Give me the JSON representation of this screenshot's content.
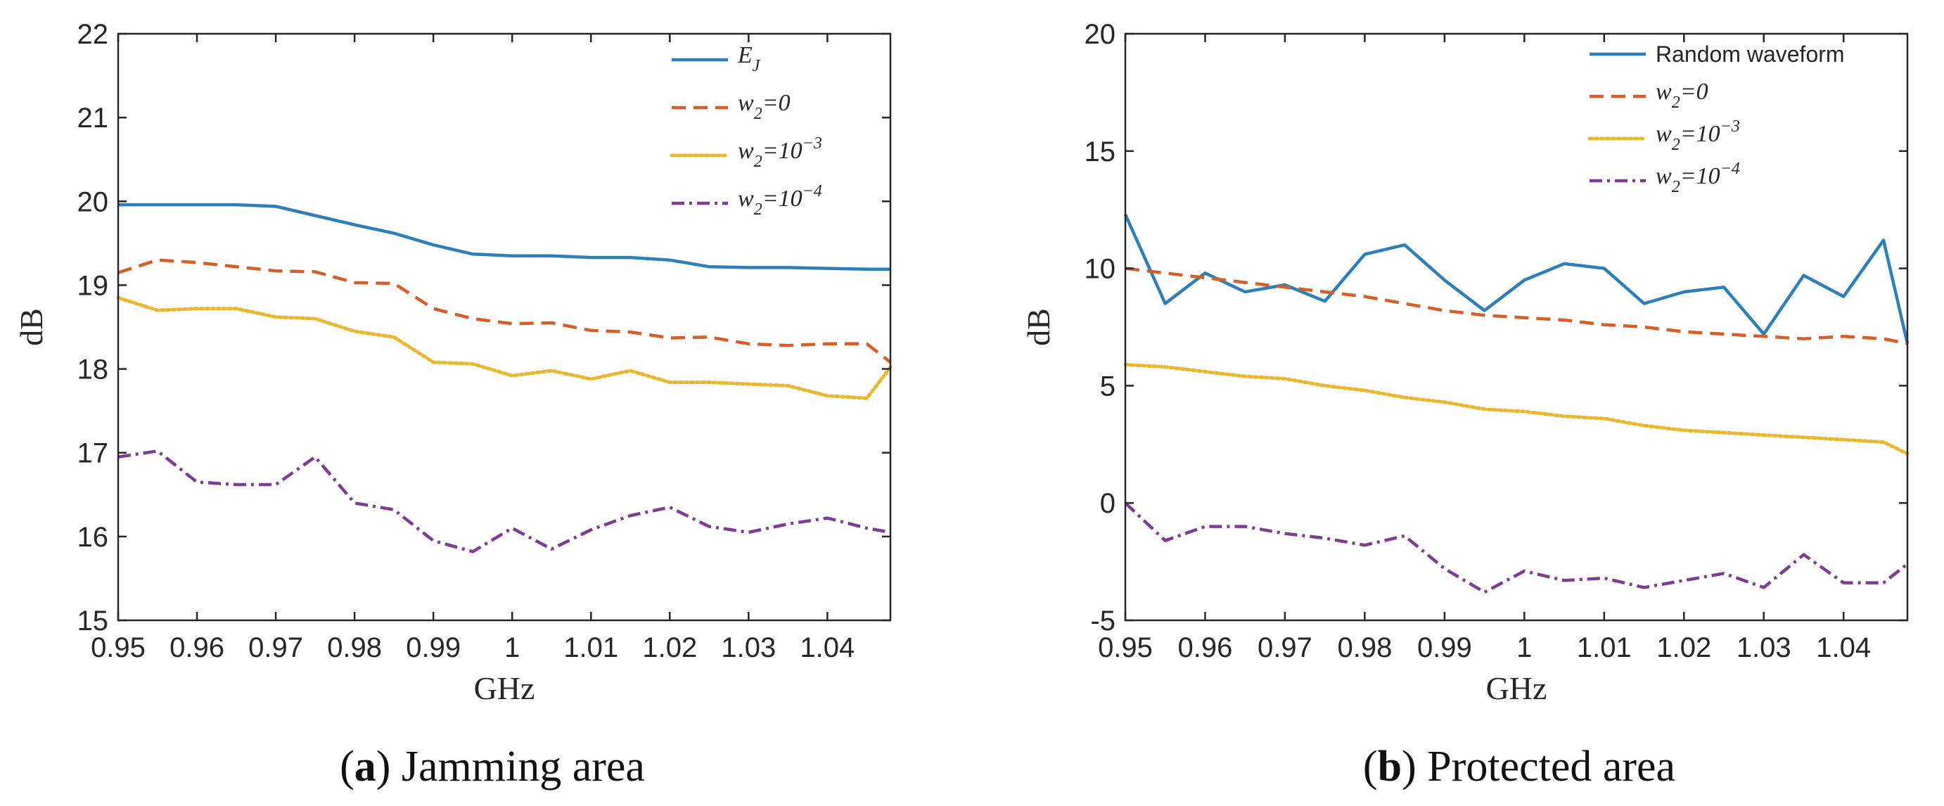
{
  "chart_data": [
    {
      "type": "line",
      "id": "a",
      "caption_letter": "a",
      "caption_text": "Jamming area",
      "xlabel": "GHz",
      "ylabel": "dB",
      "xlim": [
        0.95,
        1.048
      ],
      "ylim": [
        15,
        22
      ],
      "xticks": [
        "0.95",
        "0.96",
        "0.97",
        "0.98",
        "0.99",
        "1",
        "1.01",
        "1.02",
        "1.03",
        "1.04"
      ],
      "yticks": [
        "15",
        "16",
        "17",
        "18",
        "19",
        "20",
        "21",
        "22"
      ],
      "legend_position": "top-right",
      "x": [
        0.95,
        0.955,
        0.96,
        0.965,
        0.97,
        0.975,
        0.98,
        0.985,
        0.99,
        0.995,
        1.0,
        1.005,
        1.01,
        1.015,
        1.02,
        1.025,
        1.03,
        1.035,
        1.04,
        1.045,
        1.048
      ],
      "series": [
        {
          "name": "E",
          "sub": "J",
          "style": "solid",
          "color": "#2E7EB8",
          "values": [
            19.96,
            19.96,
            19.96,
            19.96,
            19.94,
            19.83,
            19.72,
            19.62,
            19.48,
            19.37,
            19.35,
            19.35,
            19.33,
            19.33,
            19.3,
            19.22,
            19.21,
            19.21,
            19.2,
            19.19,
            19.19
          ]
        },
        {
          "name": "w",
          "sub": "2",
          "eq": "=0",
          "style": "dashed",
          "color": "#D35F2A",
          "values": [
            19.15,
            19.3,
            19.27,
            19.22,
            19.17,
            19.16,
            19.03,
            19.02,
            18.72,
            18.6,
            18.54,
            18.55,
            18.46,
            18.44,
            18.37,
            18.38,
            18.3,
            18.28,
            18.3,
            18.3,
            18.08
          ]
        },
        {
          "name": "w",
          "sub": "2",
          "eq": "=10",
          "sup": "−3",
          "style": "dotted",
          "color": "#E8B830",
          "values": [
            18.85,
            18.7,
            18.72,
            18.72,
            18.62,
            18.6,
            18.45,
            18.38,
            18.08,
            18.06,
            17.92,
            17.98,
            17.88,
            17.98,
            17.84,
            17.84,
            17.82,
            17.8,
            17.68,
            17.65,
            18.02
          ]
        },
        {
          "name": "w",
          "sub": "2",
          "eq": "=10",
          "sup": "−4",
          "style": "dashdot",
          "color": "#7B3F90",
          "values": [
            16.95,
            17.02,
            16.65,
            16.62,
            16.62,
            16.95,
            16.4,
            16.32,
            15.95,
            15.82,
            16.1,
            15.85,
            16.08,
            16.25,
            16.35,
            16.12,
            16.05,
            16.15,
            16.22,
            16.1,
            16.05
          ]
        }
      ]
    },
    {
      "type": "line",
      "id": "b",
      "caption_letter": "b",
      "caption_text": "Protected area",
      "xlabel": "GHz",
      "ylabel": "dB",
      "xlim": [
        0.95,
        1.048
      ],
      "ylim": [
        -5,
        20
      ],
      "xticks": [
        "0.95",
        "0.96",
        "0.97",
        "0.98",
        "0.99",
        "1",
        "1.01",
        "1.02",
        "1.03",
        "1.04"
      ],
      "yticks": [
        "-5",
        "0",
        "5",
        "10",
        "15",
        "20"
      ],
      "legend_position": "top-right",
      "x": [
        0.95,
        0.955,
        0.96,
        0.965,
        0.97,
        0.975,
        0.98,
        0.985,
        0.99,
        0.995,
        1.0,
        1.005,
        1.01,
        1.015,
        1.02,
        1.025,
        1.03,
        1.035,
        1.04,
        1.045,
        1.048
      ],
      "series": [
        {
          "name": "Random waveform",
          "plain": true,
          "style": "solid",
          "color": "#2E7EB8",
          "values": [
            12.3,
            8.5,
            9.8,
            9.0,
            9.3,
            8.6,
            10.6,
            11.0,
            9.5,
            8.2,
            9.5,
            10.2,
            10.0,
            8.5,
            9.0,
            9.2,
            7.2,
            9.7,
            8.8,
            11.2,
            6.8
          ]
        },
        {
          "name": "w",
          "sub": "2",
          "eq": "=0",
          "style": "dashed",
          "color": "#D35F2A",
          "values": [
            10.0,
            9.8,
            9.6,
            9.4,
            9.2,
            9.0,
            8.8,
            8.5,
            8.2,
            8.0,
            7.9,
            7.8,
            7.6,
            7.5,
            7.3,
            7.2,
            7.1,
            7.0,
            7.1,
            7.0,
            6.8
          ]
        },
        {
          "name": "w",
          "sub": "2",
          "eq": "=10",
          "sup": "−3",
          "style": "dotted",
          "color": "#E8B830",
          "values": [
            5.9,
            5.8,
            5.6,
            5.4,
            5.3,
            5.0,
            4.8,
            4.5,
            4.3,
            4.0,
            3.9,
            3.7,
            3.6,
            3.3,
            3.1,
            3.0,
            2.9,
            2.8,
            2.7,
            2.6,
            2.1
          ]
        },
        {
          "name": "w",
          "sub": "2",
          "eq": "=10",
          "sup": "−4",
          "style": "dashdot",
          "color": "#7B3F90",
          "values": [
            0.0,
            -1.6,
            -1.0,
            -1.0,
            -1.3,
            -1.5,
            -1.8,
            -1.4,
            -2.8,
            -3.8,
            -2.9,
            -3.3,
            -3.2,
            -3.6,
            -3.3,
            -3.0,
            -3.6,
            -2.2,
            -3.4,
            -3.4,
            -2.6
          ]
        }
      ]
    }
  ]
}
